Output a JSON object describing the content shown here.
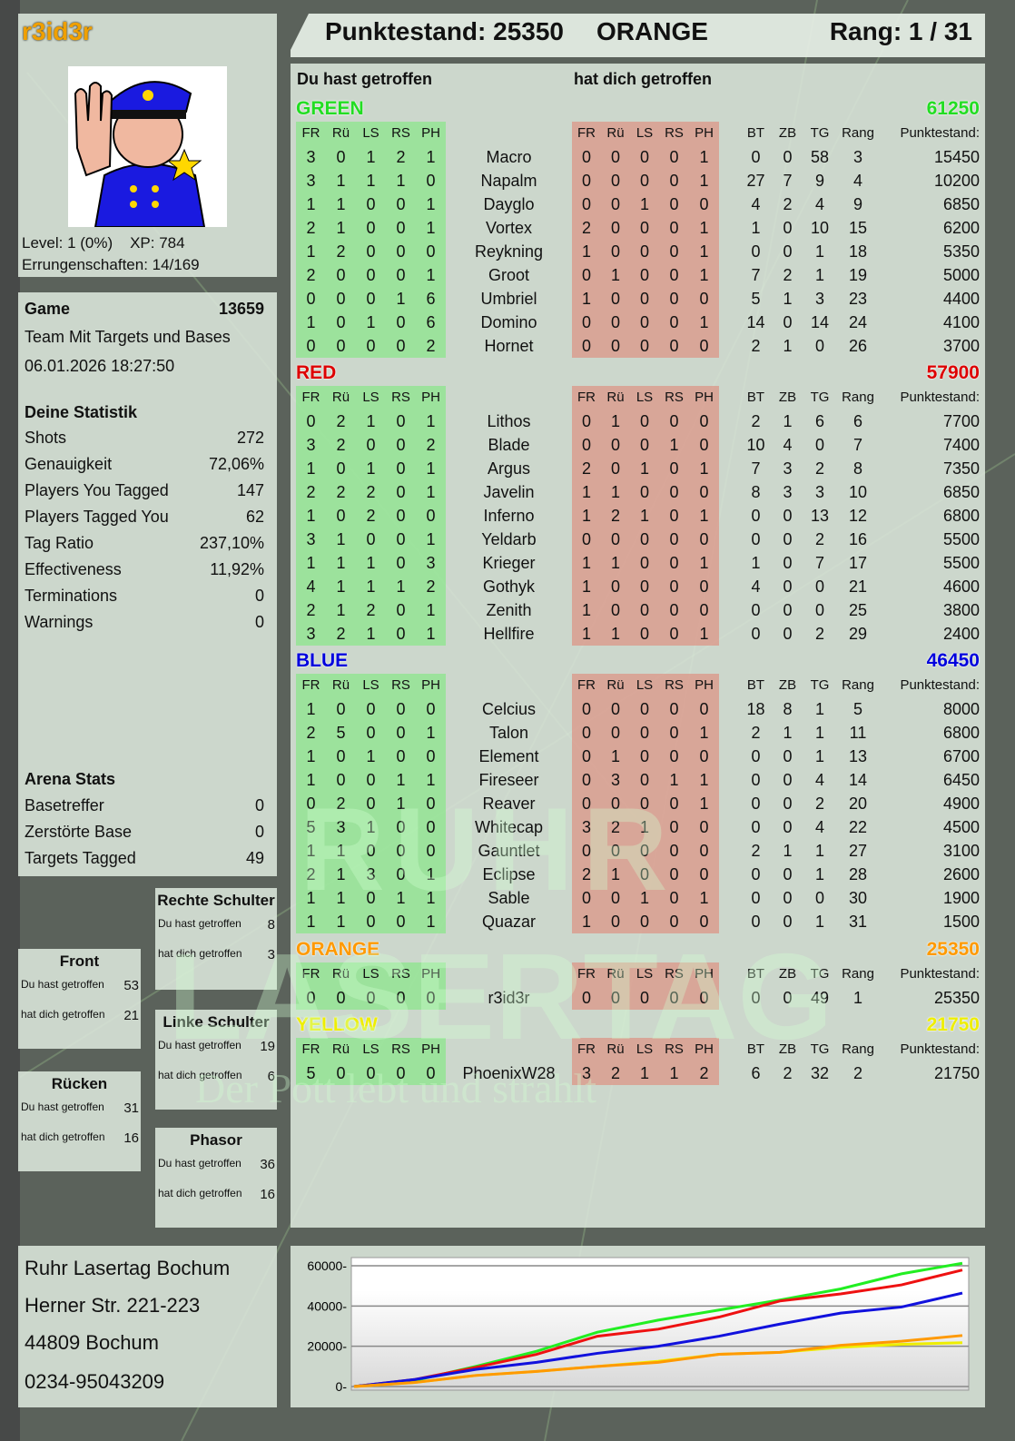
{
  "header": {
    "score_label": "Punktestand: 25350",
    "team": "ORANGE",
    "rank": "Rang: 1 / 31"
  },
  "profile": {
    "name": "r3id3r",
    "level": "Level: 1 (0%)",
    "xp": "XP: 784",
    "achievements": "Errungenschaften: 14/169",
    "avatar_icon": "police-officer-stop-icon"
  },
  "game": {
    "label": "Game",
    "id": "13659",
    "mode": "Team Mit Targets und Bases",
    "datetime": "06.01.2026 18:27:50"
  },
  "stats": {
    "title": "Deine Statistik",
    "items": [
      {
        "label": "Shots",
        "value": "272"
      },
      {
        "label": "Genauigkeit",
        "value": "72,06%"
      },
      {
        "label": "Players You Tagged",
        "value": "147"
      },
      {
        "label": "Players Tagged You",
        "value": "62"
      },
      {
        "label": "Tag Ratio",
        "value": "237,10%"
      },
      {
        "label": "Effectiveness",
        "value": "11,92%"
      },
      {
        "label": "Terminations",
        "value": "0"
      },
      {
        "label": "Warnings",
        "value": "0"
      }
    ]
  },
  "arena": {
    "title": "Arena Stats",
    "items": [
      {
        "label": "Basetreffer",
        "value": "0"
      },
      {
        "label": "Zerstörte Base",
        "value": "0"
      },
      {
        "label": "Targets Tagged",
        "value": "49"
      }
    ]
  },
  "zones": {
    "you_hit": "Du hast getroffen",
    "hit_you": "hat dich getroffen",
    "rechte": {
      "title": "Rechte Schulter",
      "you_hit": "8",
      "hit_you": "3"
    },
    "front": {
      "title": "Front",
      "you_hit": "53",
      "hit_you": "21"
    },
    "linke": {
      "title": "Linke Schulter",
      "you_hit": "19",
      "hit_you": "6"
    },
    "ruecken": {
      "title": "Rücken",
      "you_hit": "31",
      "hit_you": "16"
    },
    "phasor": {
      "title": "Phasor",
      "you_hit": "36",
      "hit_you": "16"
    }
  },
  "address": {
    "line1": "Ruhr Lasertag Bochum",
    "line2": "Herner Str. 221-223",
    "line3": "44809 Bochum",
    "phone": "0234-95043209"
  },
  "watermark": {
    "line1": "RUHR",
    "line2": "LASERTAG",
    "line3": "Der Pott lebt und strahlt"
  },
  "main": {
    "you_hit_heading": "Du hast getroffen",
    "hit_you_heading": "hat dich getroffen",
    "columns": [
      "FR",
      "Rü",
      "LS",
      "RS",
      "PH",
      "",
      "FR",
      "Rü",
      "LS",
      "RS",
      "PH",
      "",
      "BT",
      "ZB",
      "TG",
      "Rang",
      "Punktestand:"
    ],
    "teams": [
      {
        "name": "GREEN",
        "score": "61250",
        "color": "#22dd22",
        "players": [
          [
            "3",
            "0",
            "1",
            "2",
            "1",
            "Macro",
            "0",
            "0",
            "0",
            "0",
            "1",
            "0",
            "0",
            "58",
            "3",
            "15450"
          ],
          [
            "3",
            "1",
            "1",
            "1",
            "0",
            "Napalm",
            "0",
            "0",
            "0",
            "0",
            "1",
            "27",
            "7",
            "9",
            "4",
            "10200"
          ],
          [
            "1",
            "1",
            "0",
            "0",
            "1",
            "Dayglo",
            "0",
            "0",
            "1",
            "0",
            "0",
            "4",
            "2",
            "4",
            "9",
            "6850"
          ],
          [
            "2",
            "1",
            "0",
            "0",
            "1",
            "Vortex",
            "2",
            "0",
            "0",
            "0",
            "1",
            "1",
            "0",
            "10",
            "15",
            "6200"
          ],
          [
            "1",
            "2",
            "0",
            "0",
            "0",
            "Reykning",
            "1",
            "0",
            "0",
            "0",
            "1",
            "0",
            "0",
            "1",
            "18",
            "5350"
          ],
          [
            "2",
            "0",
            "0",
            "0",
            "1",
            "Groot",
            "0",
            "1",
            "0",
            "0",
            "1",
            "7",
            "2",
            "1",
            "19",
            "5000"
          ],
          [
            "0",
            "0",
            "0",
            "1",
            "6",
            "Umbriel",
            "1",
            "0",
            "0",
            "0",
            "0",
            "5",
            "1",
            "3",
            "23",
            "4400"
          ],
          [
            "1",
            "0",
            "1",
            "0",
            "6",
            "Domino",
            "0",
            "0",
            "0",
            "0",
            "1",
            "14",
            "0",
            "14",
            "24",
            "4100"
          ],
          [
            "0",
            "0",
            "0",
            "0",
            "2",
            "Hornet",
            "0",
            "0",
            "0",
            "0",
            "0",
            "2",
            "1",
            "0",
            "26",
            "3700"
          ]
        ]
      },
      {
        "name": "RED",
        "score": "57900",
        "color": "#dd0000",
        "players": [
          [
            "0",
            "2",
            "1",
            "0",
            "1",
            "Lithos",
            "0",
            "1",
            "0",
            "0",
            "0",
            "2",
            "1",
            "6",
            "6",
            "7700"
          ],
          [
            "3",
            "2",
            "0",
            "0",
            "2",
            "Blade",
            "0",
            "0",
            "0",
            "1",
            "0",
            "10",
            "4",
            "0",
            "7",
            "7400"
          ],
          [
            "1",
            "0",
            "1",
            "0",
            "1",
            "Argus",
            "2",
            "0",
            "1",
            "0",
            "1",
            "7",
            "3",
            "2",
            "8",
            "7350"
          ],
          [
            "2",
            "2",
            "2",
            "0",
            "1",
            "Javelin",
            "1",
            "1",
            "0",
            "0",
            "0",
            "8",
            "3",
            "3",
            "10",
            "6850"
          ],
          [
            "1",
            "0",
            "2",
            "0",
            "0",
            "Inferno",
            "1",
            "2",
            "1",
            "0",
            "1",
            "0",
            "0",
            "13",
            "12",
            "6800"
          ],
          [
            "3",
            "1",
            "0",
            "0",
            "1",
            "Yeldarb",
            "0",
            "0",
            "0",
            "0",
            "0",
            "0",
            "0",
            "2",
            "16",
            "5500"
          ],
          [
            "1",
            "1",
            "1",
            "0",
            "3",
            "Krieger",
            "1",
            "1",
            "0",
            "0",
            "1",
            "1",
            "0",
            "7",
            "17",
            "5500"
          ],
          [
            "4",
            "1",
            "1",
            "1",
            "2",
            "Gothyk",
            "1",
            "0",
            "0",
            "0",
            "0",
            "4",
            "0",
            "0",
            "21",
            "4600"
          ],
          [
            "2",
            "1",
            "2",
            "0",
            "1",
            "Zenith",
            "1",
            "0",
            "0",
            "0",
            "0",
            "0",
            "0",
            "0",
            "25",
            "3800"
          ],
          [
            "3",
            "2",
            "1",
            "0",
            "1",
            "Hellfire",
            "1",
            "1",
            "0",
            "0",
            "1",
            "0",
            "0",
            "2",
            "29",
            "2400"
          ]
        ]
      },
      {
        "name": "BLUE",
        "score": "46450",
        "color": "#0000dd",
        "players": [
          [
            "1",
            "0",
            "0",
            "0",
            "0",
            "Celcius",
            "0",
            "0",
            "0",
            "0",
            "0",
            "18",
            "8",
            "1",
            "5",
            "8000"
          ],
          [
            "2",
            "5",
            "0",
            "0",
            "1",
            "Talon",
            "0",
            "0",
            "0",
            "0",
            "1",
            "2",
            "1",
            "1",
            "11",
            "6800"
          ],
          [
            "1",
            "0",
            "1",
            "0",
            "0",
            "Element",
            "0",
            "1",
            "0",
            "0",
            "0",
            "0",
            "0",
            "1",
            "13",
            "6700"
          ],
          [
            "1",
            "0",
            "0",
            "1",
            "1",
            "Fireseer",
            "0",
            "3",
            "0",
            "1",
            "1",
            "0",
            "0",
            "4",
            "14",
            "6450"
          ],
          [
            "0",
            "2",
            "0",
            "1",
            "0",
            "Reaver",
            "0",
            "0",
            "0",
            "0",
            "1",
            "0",
            "0",
            "2",
            "20",
            "4900"
          ],
          [
            "5",
            "3",
            "1",
            "0",
            "0",
            "Whitecap",
            "3",
            "2",
            "1",
            "0",
            "0",
            "0",
            "0",
            "4",
            "22",
            "4500"
          ],
          [
            "1",
            "1",
            "0",
            "0",
            "0",
            "Gauntlet",
            "0",
            "0",
            "0",
            "0",
            "0",
            "2",
            "1",
            "1",
            "27",
            "3100"
          ],
          [
            "2",
            "1",
            "3",
            "0",
            "1",
            "Eclipse",
            "2",
            "1",
            "0",
            "0",
            "0",
            "0",
            "0",
            "1",
            "28",
            "2600"
          ],
          [
            "1",
            "1",
            "0",
            "1",
            "1",
            "Sable",
            "0",
            "0",
            "1",
            "0",
            "1",
            "0",
            "0",
            "0",
            "30",
            "1900"
          ],
          [
            "1",
            "1",
            "0",
            "0",
            "1",
            "Quazar",
            "1",
            "0",
            "0",
            "0",
            "0",
            "0",
            "0",
            "1",
            "31",
            "1500"
          ]
        ]
      },
      {
        "name": "ORANGE",
        "score": "25350",
        "color": "#ff9900",
        "players": [
          [
            "0",
            "0",
            "0",
            "0",
            "0",
            "r3id3r",
            "0",
            "0",
            "0",
            "0",
            "0",
            "0",
            "0",
            "49",
            "1",
            "25350"
          ]
        ]
      },
      {
        "name": "YELLOW",
        "score": "21750",
        "color": "#eeee00",
        "players": [
          [
            "5",
            "0",
            "0",
            "0",
            "0",
            "PhoenixW28",
            "3",
            "2",
            "1",
            "1",
            "2",
            "6",
            "2",
            "32",
            "2",
            "21750"
          ]
        ]
      }
    ]
  },
  "chart_data": {
    "type": "line",
    "title": "",
    "xlabel": "",
    "ylabel": "",
    "ylim": [
      0,
      62000
    ],
    "yticks": [
      "60000",
      "40000",
      "20000",
      "0"
    ],
    "grid": true,
    "x": [
      0,
      1,
      2,
      3,
      4,
      5,
      6,
      7,
      8,
      9,
      10
    ],
    "series": [
      {
        "color": "#22ee22",
        "values": [
          0,
          3000,
          10000,
          17500,
          27000,
          33000,
          38000,
          43000,
          48500,
          56000,
          61250
        ]
      },
      {
        "color": "#ee1111",
        "values": [
          0,
          3500,
          9500,
          16000,
          25000,
          28500,
          34500,
          42500,
          46000,
          50500,
          57900
        ]
      },
      {
        "color": "#1111dd",
        "values": [
          0,
          3500,
          8500,
          12000,
          16500,
          20000,
          25000,
          31000,
          36500,
          39500,
          46450
        ]
      },
      {
        "color": "#eeee00",
        "values": [
          0,
          2000,
          5500,
          7500,
          10000,
          12500,
          16000,
          17000,
          19500,
          21000,
          21750
        ]
      },
      {
        "color": "#ff9900",
        "values": [
          0,
          2000,
          5500,
          7500,
          10000,
          12000,
          16000,
          17000,
          20500,
          22500,
          25350
        ]
      }
    ]
  }
}
